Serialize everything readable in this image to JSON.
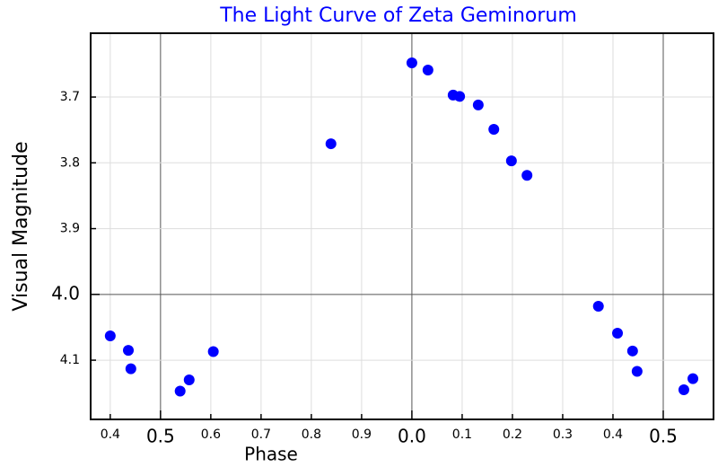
{
  "chart_data": {
    "type": "scatter",
    "title": "The Light Curve of Zeta Geminorum",
    "x_label": "Phase",
    "y_label": "Visual Magnitude",
    "series": [
      {
        "name": "Zeta Geminorum",
        "color": "#0000ff",
        "x": [
          0.4,
          0.436,
          0.441,
          0.539,
          0.557,
          0.605,
          0.839,
          1.0,
          1.032,
          1.082,
          1.095,
          1.132,
          1.163,
          1.198,
          1.229,
          1.371,
          1.409,
          1.439,
          1.448,
          1.541,
          1.559
        ],
        "values": [
          4.063,
          4.085,
          4.113,
          4.147,
          4.13,
          4.087,
          3.771,
          3.648,
          3.659,
          3.697,
          3.699,
          3.712,
          3.749,
          3.797,
          3.819,
          4.018,
          4.059,
          4.086,
          4.117,
          4.145,
          4.128
        ]
      }
    ],
    "xlim": [
      0.361,
      1.6
    ],
    "xticks": [
      0.4,
      0.5,
      0.6,
      0.7,
      0.8,
      0.9,
      {
        "value": 1.0,
        "label": "0.0"
      },
      {
        "value": 1.1,
        "label": "0.1"
      },
      {
        "value": 1.2,
        "label": "0.2"
      },
      {
        "value": 1.3,
        "label": "0.3"
      },
      {
        "value": 1.4,
        "label": "0.4"
      },
      {
        "value": 1.5,
        "label": "0.5"
      }
    ],
    "ylim": [
      3.603,
      4.19
    ],
    "y_inverted": true,
    "yticks": [
      3.7,
      3.8,
      3.9,
      {
        "value": 4.0,
        "label": "4.0"
      },
      4.1
    ],
    "grid": true
  }
}
